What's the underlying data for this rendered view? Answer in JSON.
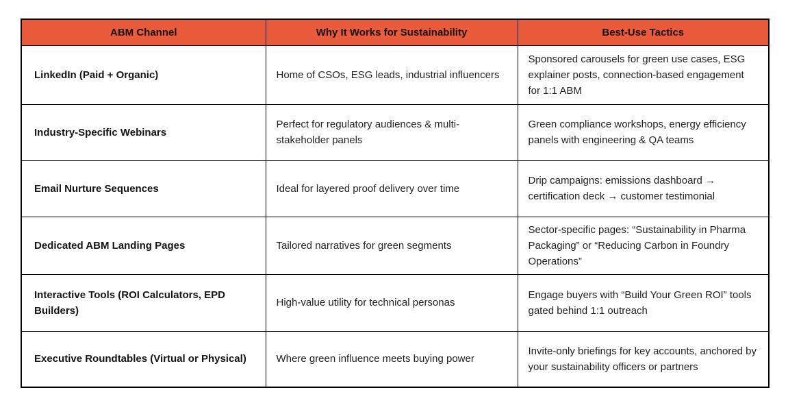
{
  "colors": {
    "header_bg": "#EA5B3B",
    "grid_border": "#000000",
    "body_text": "#1f1f1f",
    "page_bg": "#ffffff"
  },
  "table": {
    "name": "abm-channels-sustainability-table",
    "columns": [
      {
        "label": "ABM Channel"
      },
      {
        "label": "Why It Works for Sustainability"
      },
      {
        "label": "Best-Use Tactics"
      }
    ],
    "rows": [
      {
        "channel": "LinkedIn (Paid + Organic)",
        "why": "Home of CSOs, ESG leads, industrial influencers",
        "tactics": "Sponsored carousels for green use cases, ESG explainer posts, connection-based engagement for 1:1 ABM"
      },
      {
        "channel": "Industry-Specific Webinars",
        "why": "Perfect for regulatory audiences & multi-stakeholder panels",
        "tactics": "Green compliance workshops, energy efficiency panels with engineering & QA teams"
      },
      {
        "channel": "Email Nurture Sequences",
        "why": "Ideal for layered proof delivery over time",
        "tactics": "Drip campaigns: emissions dashboard → certification deck → customer testimonial"
      },
      {
        "channel": "Dedicated ABM Landing Pages",
        "why": "Tailored narratives for green segments",
        "tactics": "Sector-specific pages: “Sustainability in Pharma Packaging” or “Reducing Carbon in Foundry Operations”"
      },
      {
        "channel": "Interactive Tools (ROI Calculators, EPD Builders)",
        "why": "High-value utility for technical personas",
        "tactics": "Engage buyers with “Build Your Green ROI” tools gated behind 1:1 outreach"
      },
      {
        "channel": "Executive Roundtables (Virtual or Physical)",
        "why": "Where green influence meets buying power",
        "tactics": "Invite-only briefings for key accounts, anchored by your sustainability officers or partners"
      }
    ]
  }
}
